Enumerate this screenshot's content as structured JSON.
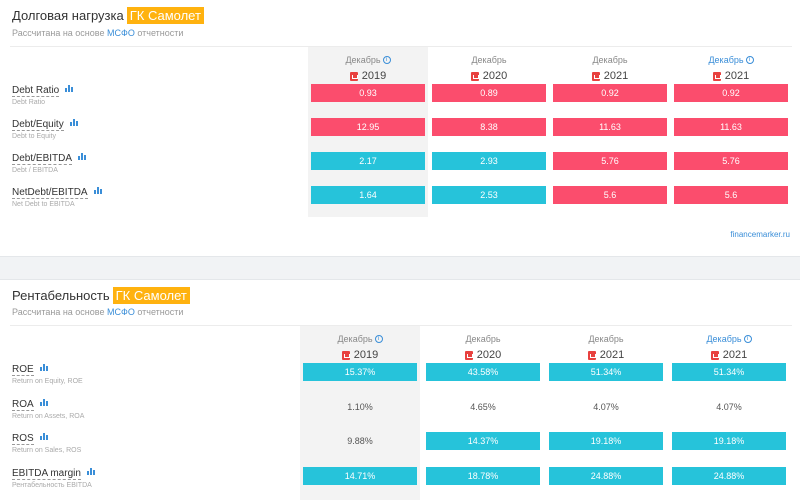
{
  "debt": {
    "title": "Долговая нагрузка",
    "company": "ГК Самолет",
    "subtitle_prefix": "Рассчитана на основе",
    "subtitle_link": "МСФО",
    "subtitle_suffix": "отчетности",
    "columns": [
      {
        "month": "Декабрь",
        "year": "2019",
        "info": true,
        "blue": false
      },
      {
        "month": "Декабрь",
        "year": "2020",
        "info": false,
        "blue": false
      },
      {
        "month": "Декабрь",
        "year": "2021",
        "info": false,
        "blue": false
      },
      {
        "month": "Декабрь",
        "year": "2021",
        "info": true,
        "blue": true
      }
    ],
    "rows": [
      {
        "name": "Debt Ratio",
        "desc": "Debt Ratio",
        "values": [
          "0.93",
          "0.89",
          "0.92",
          "0.92"
        ],
        "colors": [
          "red",
          "red",
          "red",
          "red"
        ]
      },
      {
        "name": "Debt/Equity",
        "desc": "Debt to Equity",
        "values": [
          "12.95",
          "8.38",
          "11.63",
          "11.63"
        ],
        "colors": [
          "red",
          "red",
          "red",
          "red"
        ]
      },
      {
        "name": "Debt/EBITDA",
        "desc": "Debt / EBITDA",
        "values": [
          "2.17",
          "2.93",
          "5.76",
          "5.76"
        ],
        "colors": [
          "cyan",
          "cyan",
          "red",
          "red"
        ]
      },
      {
        "name": "NetDebt/EBITDA",
        "desc": "Net Debt to EBITDA",
        "values": [
          "1.64",
          "2.53",
          "5.6",
          "5.6"
        ],
        "colors": [
          "cyan",
          "cyan",
          "red",
          "red"
        ]
      }
    ],
    "footer": "financemarker.ru"
  },
  "profit": {
    "title": "Рентабельность",
    "company": "ГК Самолет",
    "subtitle_prefix": "Рассчитана на основе",
    "subtitle_link": "МСФО",
    "subtitle_suffix": "отчетности",
    "columns": [
      {
        "month": "Декабрь",
        "year": "2019",
        "info": true,
        "blue": false
      },
      {
        "month": "Декабрь",
        "year": "2020",
        "info": false,
        "blue": false
      },
      {
        "month": "Декабрь",
        "year": "2021",
        "info": false,
        "blue": false
      },
      {
        "month": "Декабрь",
        "year": "2021",
        "info": true,
        "blue": true
      }
    ],
    "rows": [
      {
        "name": "ROE",
        "desc": "Return on Equity, ROE",
        "values": [
          "15.37%",
          "43.58%",
          "51.34%",
          "51.34%"
        ],
        "colors": [
          "cyan",
          "cyan",
          "cyan",
          "cyan"
        ]
      },
      {
        "name": "ROA",
        "desc": "Return on Assets, ROA",
        "values": [
          "1.10%",
          "4.65%",
          "4.07%",
          "4.07%"
        ],
        "colors": [
          "plain",
          "plain",
          "plain",
          "plain"
        ]
      },
      {
        "name": "ROS",
        "desc": "Return on Sales, ROS",
        "values": [
          "9.88%",
          "14.37%",
          "19.18%",
          "19.18%"
        ],
        "colors": [
          "plain",
          "cyan",
          "cyan",
          "cyan"
        ]
      },
      {
        "name": "EBITDA margin",
        "desc": "Рентабельность EBITDA",
        "values": [
          "14.71%",
          "18.78%",
          "24.88%",
          "24.88%"
        ],
        "colors": [
          "cyan",
          "cyan",
          "cyan",
          "cyan"
        ]
      }
    ]
  },
  "colors": {
    "red": "#fb4d6d",
    "cyan": "#26c3da",
    "badge": "#ffb20f",
    "link": "#3a8ed8"
  },
  "icons": {
    "info": "info-circle-icon",
    "pdf": "pdf-icon",
    "chart": "bar-chart-icon"
  }
}
